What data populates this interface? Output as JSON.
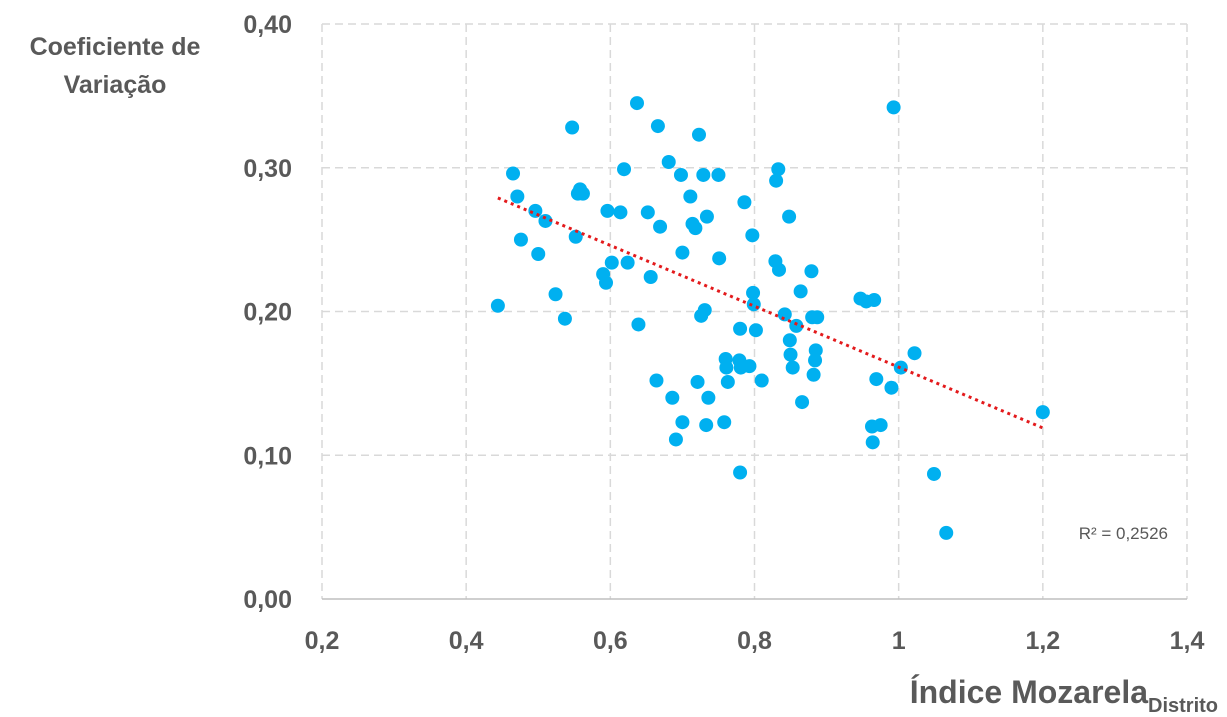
{
  "chart_data": {
    "type": "scatter",
    "title": "",
    "xlabel": "Índice Mozarela",
    "xlabel_subscript": "Distrito",
    "ylabel_lines": [
      "Coeficiente de",
      "Variação"
    ],
    "xlim": [
      0.2,
      1.4
    ],
    "ylim": [
      0.0,
      0.4
    ],
    "x_ticks": [
      0.2,
      0.4,
      0.6,
      0.8,
      1.0,
      1.2,
      1.4
    ],
    "x_tick_labels": [
      "0,2",
      "0,4",
      "0,6",
      "0,8",
      "1",
      "1,2",
      "1,4"
    ],
    "y_ticks": [
      0.0,
      0.1,
      0.2,
      0.3,
      0.4
    ],
    "y_tick_labels": [
      "0,00",
      "0,10",
      "0,20",
      "0,30",
      "0,40"
    ],
    "grid": true,
    "point_color": "#00b0f0",
    "trendline": {
      "type": "linear",
      "color": "#e31a1c",
      "x_range": [
        0.444,
        1.2
      ],
      "y_at_start": 0.279,
      "y_at_end": 0.119,
      "r2_label": "R² = 0,2526"
    },
    "points": [
      [
        0.444,
        0.204
      ],
      [
        0.465,
        0.296
      ],
      [
        0.471,
        0.28
      ],
      [
        0.476,
        0.25
      ],
      [
        0.496,
        0.27
      ],
      [
        0.5,
        0.24
      ],
      [
        0.51,
        0.263
      ],
      [
        0.524,
        0.212
      ],
      [
        0.537,
        0.195
      ],
      [
        0.547,
        0.328
      ],
      [
        0.552,
        0.252
      ],
      [
        0.555,
        0.282
      ],
      [
        0.558,
        0.285
      ],
      [
        0.562,
        0.282
      ],
      [
        0.59,
        0.226
      ],
      [
        0.594,
        0.22
      ],
      [
        0.596,
        0.27
      ],
      [
        0.602,
        0.234
      ],
      [
        0.614,
        0.269
      ],
      [
        0.619,
        0.299
      ],
      [
        0.624,
        0.234
      ],
      [
        0.637,
        0.345
      ],
      [
        0.639,
        0.191
      ],
      [
        0.652,
        0.269
      ],
      [
        0.656,
        0.224
      ],
      [
        0.664,
        0.152
      ],
      [
        0.666,
        0.329
      ],
      [
        0.669,
        0.259
      ],
      [
        0.681,
        0.304
      ],
      [
        0.686,
        0.14
      ],
      [
        0.691,
        0.111
      ],
      [
        0.698,
        0.295
      ],
      [
        0.7,
        0.123
      ],
      [
        0.7,
        0.241
      ],
      [
        0.711,
        0.28
      ],
      [
        0.714,
        0.261
      ],
      [
        0.718,
        0.258
      ],
      [
        0.721,
        0.151
      ],
      [
        0.723,
        0.323
      ],
      [
        0.726,
        0.197
      ],
      [
        0.729,
        0.295
      ],
      [
        0.731,
        0.201
      ],
      [
        0.733,
        0.121
      ],
      [
        0.734,
        0.266
      ],
      [
        0.736,
        0.14
      ],
      [
        0.75,
        0.295
      ],
      [
        0.751,
        0.237
      ],
      [
        0.758,
        0.123
      ],
      [
        0.76,
        0.167
      ],
      [
        0.761,
        0.161
      ],
      [
        0.763,
        0.151
      ],
      [
        0.779,
        0.166
      ],
      [
        0.78,
        0.188
      ],
      [
        0.78,
        0.088
      ],
      [
        0.781,
        0.161
      ],
      [
        0.786,
        0.276
      ],
      [
        0.793,
        0.162
      ],
      [
        0.797,
        0.253
      ],
      [
        0.798,
        0.213
      ],
      [
        0.799,
        0.205
      ],
      [
        0.802,
        0.187
      ],
      [
        0.81,
        0.152
      ],
      [
        0.829,
        0.235
      ],
      [
        0.83,
        0.291
      ],
      [
        0.833,
        0.299
      ],
      [
        0.834,
        0.229
      ],
      [
        0.842,
        0.198
      ],
      [
        0.848,
        0.266
      ],
      [
        0.849,
        0.18
      ],
      [
        0.85,
        0.17
      ],
      [
        0.853,
        0.161
      ],
      [
        0.858,
        0.19
      ],
      [
        0.864,
        0.214
      ],
      [
        0.866,
        0.137
      ],
      [
        0.879,
        0.228
      ],
      [
        0.88,
        0.196
      ],
      [
        0.882,
        0.156
      ],
      [
        0.884,
        0.166
      ],
      [
        0.885,
        0.173
      ],
      [
        0.887,
        0.196
      ],
      [
        0.947,
        0.209
      ],
      [
        0.955,
        0.207
      ],
      [
        0.963,
        0.12
      ],
      [
        0.964,
        0.109
      ],
      [
        0.966,
        0.208
      ],
      [
        0.969,
        0.153
      ],
      [
        0.975,
        0.121
      ],
      [
        0.99,
        0.147
      ],
      [
        0.993,
        0.342
      ],
      [
        1.003,
        0.161
      ],
      [
        1.022,
        0.171
      ],
      [
        1.049,
        0.087
      ],
      [
        1.066,
        0.046
      ],
      [
        1.2,
        0.13
      ]
    ]
  }
}
